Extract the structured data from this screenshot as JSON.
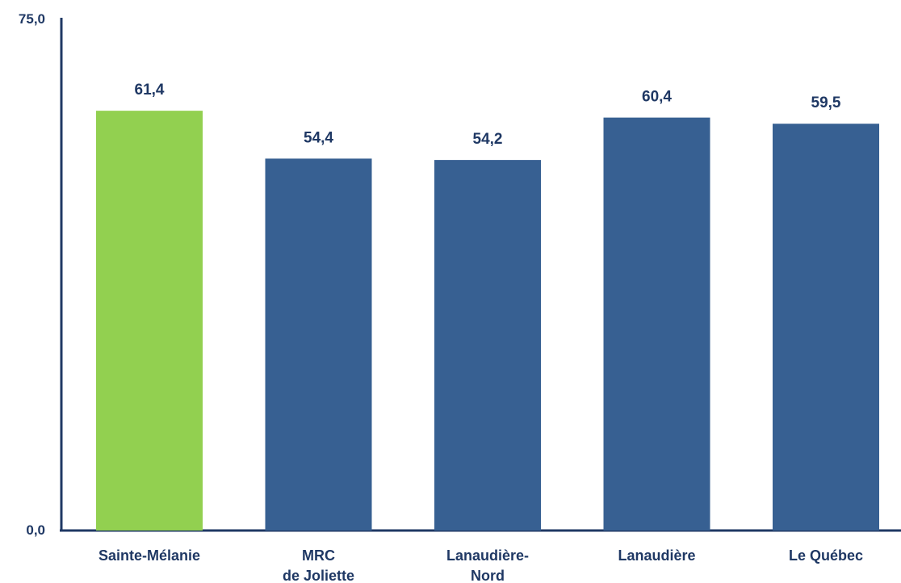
{
  "chart_data": {
    "type": "bar",
    "title": "",
    "xlabel": "",
    "ylabel": "",
    "ylim": [
      0,
      75
    ],
    "y_tick_labels": [
      "0,0",
      "75,0"
    ],
    "categories": [
      [
        "Sainte-Mélanie"
      ],
      [
        "MRC",
        "de Joliette"
      ],
      [
        "Lanaudière-",
        "Nord"
      ],
      [
        "Lanaudière"
      ],
      [
        "Le Québec"
      ]
    ],
    "values": [
      61.4,
      54.4,
      54.2,
      60.4,
      59.5
    ],
    "value_labels": [
      "61,4",
      "54,4",
      "54,2",
      "60,4",
      "59,5"
    ],
    "colors": [
      "#92d050",
      "#376092",
      "#376092",
      "#376092",
      "#376092"
    ],
    "grid": false
  }
}
